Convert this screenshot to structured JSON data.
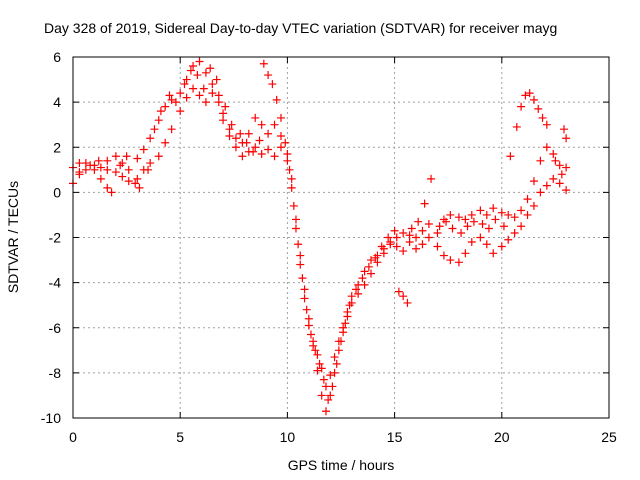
{
  "chart_data": {
    "type": "scatter",
    "title": "Day 328 of 2019, Sidereal Day-to-day VTEC variation (SDTVAR) for receiver mayg",
    "xlabel": "GPS time / hours",
    "ylabel": "SDTVAR / TECUs",
    "xlim": [
      0,
      25
    ],
    "ylim": [
      -10,
      6
    ],
    "xticks": [
      0,
      5,
      10,
      15,
      20,
      25
    ],
    "yticks": [
      -10,
      -8,
      -6,
      -4,
      -2,
      0,
      2,
      4,
      6
    ],
    "grid": true,
    "marker": "plus",
    "color": "#ff0000",
    "series": [
      {
        "name": "track-1",
        "points": [
          [
            0.0,
            1.1
          ],
          [
            0.3,
            0.9
          ],
          [
            0.6,
            1.3
          ],
          [
            1.0,
            1.0
          ],
          [
            1.3,
            0.6
          ],
          [
            1.6,
            1.4
          ],
          [
            2.0,
            1.6
          ],
          [
            2.3,
            1.3
          ],
          [
            2.6,
            1.0
          ],
          [
            3.0,
            1.5
          ],
          [
            3.3,
            1.9
          ],
          [
            3.6,
            2.4
          ],
          [
            4.0,
            3.2
          ],
          [
            4.3,
            3.8
          ],
          [
            4.6,
            4.1
          ],
          [
            5.0,
            4.4
          ],
          [
            5.3,
            5.0
          ],
          [
            5.6,
            5.6
          ],
          [
            5.9,
            5.8
          ],
          [
            6.2,
            5.3
          ],
          [
            6.5,
            4.8
          ],
          [
            6.8,
            4.3
          ],
          [
            7.0,
            3.5
          ],
          [
            7.3,
            2.8
          ],
          [
            7.6,
            2.4
          ],
          [
            7.9,
            2.2
          ],
          [
            8.2,
            2.6
          ],
          [
            8.5,
            3.3
          ],
          [
            8.8,
            3.0
          ],
          [
            9.1,
            2.6
          ],
          [
            9.4,
            3.0
          ],
          [
            9.7,
            2.5
          ],
          [
            10.0,
            1.7
          ],
          [
            10.2,
            0.6
          ],
          [
            10.4,
            -1.2
          ],
          [
            10.6,
            -2.8
          ],
          [
            10.8,
            -4.3
          ],
          [
            11.0,
            -5.6
          ],
          [
            11.2,
            -6.8
          ],
          [
            11.4,
            -7.9
          ],
          [
            11.6,
            -9.0
          ],
          [
            11.8,
            -9.7
          ],
          [
            12.0,
            -9.0
          ],
          [
            12.2,
            -8.0
          ],
          [
            12.4,
            -7.0
          ],
          [
            12.6,
            -6.2
          ],
          [
            12.8,
            -5.5
          ],
          [
            13.0,
            -4.9
          ],
          [
            13.3,
            -4.5
          ],
          [
            13.6,
            -4.1
          ],
          [
            13.9,
            -3.6
          ],
          [
            14.2,
            -3.1
          ],
          [
            14.5,
            -2.7
          ],
          [
            14.8,
            -2.3
          ],
          [
            15.1,
            -2.0
          ],
          [
            15.4,
            -1.8
          ],
          [
            15.7,
            -1.9
          ],
          [
            16.0,
            -2.0
          ],
          [
            16.3,
            -1.7
          ],
          [
            16.6,
            -1.4
          ],
          [
            17.0,
            -1.8
          ],
          [
            17.3,
            -1.2
          ],
          [
            17.6,
            -1.0
          ],
          [
            18.0,
            -1.1
          ],
          [
            18.3,
            -1.2
          ],
          [
            18.6,
            -1.0
          ],
          [
            19.0,
            -0.8
          ],
          [
            19.3,
            -1.0
          ],
          [
            19.6,
            -0.7
          ],
          [
            20.0,
            -0.9
          ],
          [
            20.3,
            -1.0
          ],
          [
            20.6,
            -1.1
          ],
          [
            20.9,
            -0.8
          ],
          [
            21.2,
            -0.3
          ],
          [
            21.5,
            0.5
          ],
          [
            21.8,
            1.4
          ],
          [
            22.1,
            2.0
          ],
          [
            22.4,
            1.7
          ],
          [
            22.7,
            1.2
          ],
          [
            23.0,
            1.1
          ]
        ]
      },
      {
        "name": "track-2",
        "points": [
          [
            0.0,
            0.4
          ],
          [
            0.3,
            0.8
          ],
          [
            0.6,
            1.0
          ],
          [
            1.0,
            1.2
          ],
          [
            1.3,
            1.1
          ],
          [
            1.6,
            1.0
          ],
          [
            2.0,
            0.9
          ],
          [
            2.3,
            0.7
          ],
          [
            2.6,
            0.5
          ],
          [
            3.0,
            0.6
          ],
          [
            3.3,
            1.0
          ],
          [
            3.6,
            1.3
          ],
          [
            4.0,
            1.6
          ],
          [
            4.3,
            2.2
          ],
          [
            4.6,
            2.8
          ],
          [
            5.0,
            3.6
          ],
          [
            5.3,
            4.2
          ],
          [
            5.6,
            4.6
          ],
          [
            5.9,
            4.3
          ],
          [
            6.2,
            4.0
          ],
          [
            6.5,
            4.4
          ],
          [
            6.8,
            4.0
          ],
          [
            7.0,
            3.2
          ],
          [
            7.3,
            2.5
          ],
          [
            7.6,
            2.0
          ],
          [
            7.9,
            1.6
          ],
          [
            8.2,
            1.8
          ],
          [
            8.5,
            2.0
          ],
          [
            8.8,
            1.7
          ],
          [
            9.1,
            1.9
          ],
          [
            9.4,
            1.6
          ],
          [
            9.7,
            2.0
          ],
          [
            10.0,
            1.4
          ],
          [
            10.2,
            0.2
          ],
          [
            10.4,
            -1.6
          ],
          [
            10.6,
            -3.2
          ],
          [
            10.8,
            -4.7
          ],
          [
            11.0,
            -5.9
          ],
          [
            11.2,
            -6.6
          ],
          [
            11.4,
            -7.2
          ],
          [
            11.6,
            -7.8
          ],
          [
            11.8,
            -8.6
          ],
          [
            12.0,
            -8.1
          ],
          [
            12.2,
            -7.3
          ],
          [
            12.4,
            -6.6
          ],
          [
            12.6,
            -6.0
          ],
          [
            12.8,
            -5.3
          ],
          [
            13.0,
            -4.6
          ],
          [
            13.3,
            -4.1
          ],
          [
            13.6,
            -3.5
          ],
          [
            13.9,
            -3.0
          ],
          [
            14.2,
            -2.8
          ],
          [
            14.5,
            -2.5
          ],
          [
            14.8,
            -2.2
          ],
          [
            15.1,
            -2.4
          ],
          [
            15.4,
            -2.6
          ],
          [
            15.7,
            -2.2
          ],
          [
            16.0,
            -2.5
          ],
          [
            16.3,
            -2.3
          ],
          [
            16.6,
            -2.0
          ],
          [
            17.0,
            -2.4
          ],
          [
            17.3,
            -2.8
          ],
          [
            17.6,
            -3.0
          ],
          [
            18.0,
            -3.1
          ],
          [
            18.3,
            -2.7
          ],
          [
            18.6,
            -2.2
          ],
          [
            19.0,
            -2.0
          ],
          [
            19.3,
            -2.3
          ],
          [
            19.6,
            -2.7
          ],
          [
            20.0,
            -2.4
          ],
          [
            20.3,
            -2.1
          ],
          [
            20.6,
            -1.8
          ],
          [
            20.9,
            -1.5
          ],
          [
            21.2,
            -1.0
          ],
          [
            21.5,
            -0.6
          ],
          [
            21.8,
            0.0
          ],
          [
            22.1,
            0.3
          ],
          [
            22.4,
            0.6
          ],
          [
            22.7,
            0.4
          ],
          [
            23.0,
            0.1
          ]
        ]
      },
      {
        "name": "track-3",
        "points": [
          [
            0.3,
            1.3
          ],
          [
            0.8,
            1.2
          ],
          [
            1.2,
            1.4
          ],
          [
            1.6,
            0.2
          ],
          [
            1.8,
            0.0
          ],
          [
            2.2,
            1.2
          ],
          [
            2.5,
            1.6
          ],
          [
            2.9,
            0.4
          ],
          [
            3.1,
            0.2
          ],
          [
            3.5,
            1.0
          ],
          [
            3.8,
            2.8
          ],
          [
            4.1,
            3.6
          ],
          [
            4.5,
            4.3
          ],
          [
            4.8,
            4.0
          ],
          [
            5.2,
            4.8
          ],
          [
            5.5,
            5.4
          ],
          [
            5.8,
            5.2
          ],
          [
            6.1,
            4.6
          ],
          [
            6.4,
            5.5
          ],
          [
            6.7,
            5.0
          ],
          [
            7.1,
            3.8
          ],
          [
            7.4,
            3.0
          ],
          [
            7.8,
            2.6
          ],
          [
            8.1,
            2.2
          ],
          [
            8.4,
            1.8
          ],
          [
            8.7,
            2.3
          ],
          [
            8.9,
            5.7
          ],
          [
            9.1,
            5.2
          ],
          [
            9.3,
            4.8
          ],
          [
            9.5,
            4.1
          ],
          [
            9.7,
            3.3
          ],
          [
            9.9,
            2.2
          ],
          [
            10.1,
            1.0
          ],
          [
            10.3,
            -0.6
          ],
          [
            10.5,
            -2.3
          ],
          [
            10.7,
            -3.8
          ],
          [
            10.9,
            -5.2
          ],
          [
            11.1,
            -6.3
          ],
          [
            11.3,
            -7.0
          ],
          [
            11.5,
            -7.6
          ],
          [
            11.7,
            -8.3
          ],
          [
            11.9,
            -9.2
          ],
          [
            12.1,
            -8.6
          ],
          [
            12.3,
            -7.6
          ],
          [
            12.5,
            -6.6
          ],
          [
            12.7,
            -5.8
          ],
          [
            12.9,
            -5.0
          ],
          [
            13.2,
            -4.3
          ],
          [
            13.5,
            -3.8
          ],
          [
            13.8,
            -3.3
          ],
          [
            14.1,
            -2.9
          ],
          [
            14.4,
            -2.4
          ],
          [
            14.7,
            -2.0
          ],
          [
            15.0,
            -1.7
          ],
          [
            15.2,
            -4.4
          ],
          [
            15.4,
            -4.6
          ],
          [
            15.6,
            -4.9
          ],
          [
            15.8,
            -1.6
          ],
          [
            16.1,
            -1.3
          ],
          [
            16.4,
            -0.5
          ],
          [
            16.7,
            0.6
          ],
          [
            17.1,
            -1.5
          ],
          [
            17.4,
            -1.3
          ],
          [
            17.7,
            -1.6
          ],
          [
            18.1,
            -1.8
          ],
          [
            18.4,
            -1.5
          ],
          [
            18.7,
            -1.3
          ],
          [
            19.1,
            -1.4
          ],
          [
            19.4,
            -1.6
          ],
          [
            19.7,
            -1.2
          ],
          [
            20.1,
            -1.5
          ],
          [
            20.4,
            1.6
          ],
          [
            20.7,
            2.9
          ],
          [
            20.9,
            3.8
          ],
          [
            21.1,
            4.3
          ],
          [
            21.3,
            4.4
          ],
          [
            21.5,
            4.1
          ],
          [
            21.7,
            3.7
          ],
          [
            21.9,
            3.3
          ],
          [
            22.1,
            3.0
          ],
          [
            22.5,
            1.4
          ],
          [
            22.8,
            0.8
          ],
          [
            22.9,
            2.8
          ],
          [
            23.0,
            2.4
          ]
        ]
      }
    ]
  }
}
